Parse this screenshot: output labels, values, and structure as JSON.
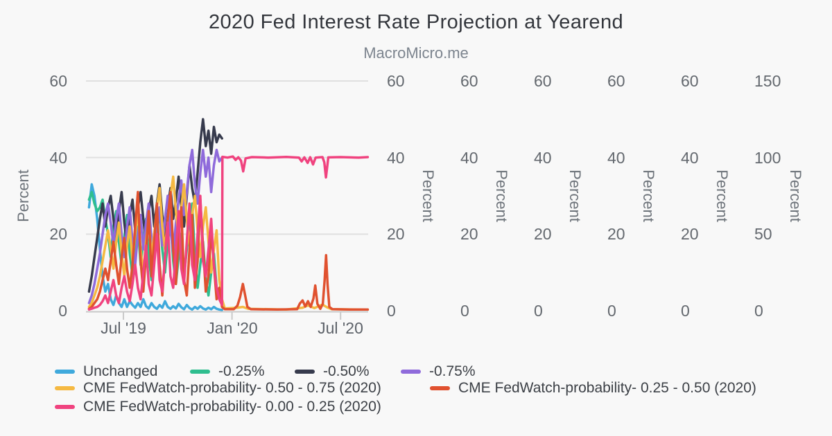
{
  "chart_data": {
    "type": "line",
    "title": "2020 Fed Interest Rate Projection at Yearend",
    "subtitle": "MacroMicro.me",
    "grid": "horizontal-only",
    "legend_position": "bottom-left",
    "x_axis": {
      "tick_labels": [
        "Jul '19",
        "Jan '20",
        "Jul '20"
      ],
      "tick_months": [
        0,
        6,
        12
      ],
      "range_months": [
        -1.9,
        13.5
      ],
      "unit": "months from 2019-07-01"
    },
    "x_grid": {
      "start": -1.9,
      "step": 0.15
    },
    "y_axes": [
      {
        "side": "left",
        "title": "Percent",
        "max": 60,
        "ticks": [
          "60",
          "40",
          "20",
          "0"
        ]
      },
      {
        "side": "right",
        "title": "Percent",
        "max": 60,
        "ticks": [
          "60",
          "40",
          "20",
          "0"
        ]
      },
      {
        "side": "right",
        "title": "Percent",
        "max": 60,
        "ticks": [
          "60",
          "40",
          "20",
          "0"
        ]
      },
      {
        "side": "right",
        "title": "Percent",
        "max": 60,
        "ticks": [
          "60",
          "40",
          "20",
          "0"
        ]
      },
      {
        "side": "right",
        "title": "Percent",
        "max": 60,
        "ticks": [
          "60",
          "40",
          "20",
          "0"
        ]
      },
      {
        "side": "right",
        "title": "Percent",
        "max": 60,
        "ticks": [
          "60",
          "40",
          "20",
          "0"
        ]
      },
      {
        "side": "right",
        "title": "Percent",
        "max": 150,
        "ticks": [
          "150",
          "100",
          "50",
          "0"
        ]
      }
    ],
    "series": [
      {
        "name": "Unchanged",
        "color": "#3fa9dc",
        "axis": 0,
        "values": [
          27,
          33,
          30,
          24,
          16,
          9,
          5,
          7,
          3,
          1.5,
          4,
          2,
          1,
          3,
          1,
          2.5,
          1.5,
          0.8,
          2,
          1,
          3,
          1.2,
          0.6,
          2,
          1,
          0.5,
          1.5,
          0.8,
          2.5,
          1,
          0.5,
          1.2,
          0.6,
          1.8,
          0.9,
          0.4,
          1.5,
          0.7,
          0.3,
          1,
          0.5,
          1.2,
          0.6,
          0.3,
          0.8,
          0.4,
          1,
          0.5,
          0.3,
          0.2
        ]
      },
      {
        "name": "-0.25%",
        "color": "#2fbe8f",
        "axis": 1,
        "values": [
          29,
          31,
          28,
          26,
          27,
          29,
          24,
          20,
          14,
          22,
          26,
          18,
          12,
          19,
          25,
          15,
          9,
          16,
          22,
          12,
          18,
          24,
          14,
          8,
          15,
          21,
          26,
          16,
          10,
          18,
          23,
          13,
          7,
          14,
          20,
          9,
          16,
          24,
          28,
          14,
          6,
          12,
          18,
          8,
          4,
          10,
          15,
          6,
          3,
          2
        ]
      },
      {
        "name": "-0.50%",
        "color": "#373b4d",
        "axis": 2,
        "values": [
          5,
          9,
          14,
          19,
          24,
          28,
          22,
          27,
          30,
          24,
          18,
          26,
          31,
          23,
          17,
          25,
          29,
          21,
          27,
          31,
          24,
          18,
          26,
          30,
          22,
          28,
          33,
          25,
          19,
          27,
          32,
          24,
          29,
          35,
          27,
          22,
          30,
          38,
          32,
          28,
          36,
          44,
          50,
          43,
          47,
          41,
          48,
          44,
          46,
          45
        ]
      },
      {
        "name": "-0.75%",
        "color": "#8f6bdb",
        "axis": 3,
        "values": [
          2,
          4,
          7,
          11,
          15,
          20,
          25,
          28,
          23,
          17,
          24,
          28,
          20,
          14,
          22,
          27,
          18,
          12,
          20,
          25,
          16,
          23,
          28,
          19,
          13,
          21,
          27,
          17,
          24,
          30,
          21,
          15,
          23,
          29,
          34,
          25,
          31,
          38,
          42,
          33,
          28,
          36,
          42,
          35,
          40,
          31,
          38,
          42,
          39,
          40
        ]
      },
      {
        "name": "CME FedWatch-probability- 0.50 - 0.75 (2020)",
        "color": "#f5b942",
        "axis": 4,
        "values": [
          1,
          2,
          4,
          6,
          9,
          13,
          17,
          21,
          16,
          11,
          18,
          23,
          15,
          9,
          17,
          22,
          13,
          20,
          26,
          16,
          10,
          18,
          24,
          14,
          20,
          27,
          32,
          22,
          16,
          24,
          30,
          35,
          26,
          19,
          27,
          33,
          24,
          17,
          25,
          30,
          21,
          14,
          22,
          27,
          18,
          10,
          16,
          21,
          8,
          3
        ],
        "extra_points": [
          [
            5.6,
            0.6
          ],
          [
            6.3,
            0.8
          ],
          [
            6.6,
            1
          ],
          [
            6.9,
            0.5
          ],
          [
            8,
            0.4
          ],
          [
            9,
            0.3
          ],
          [
            9.9,
            0.8
          ],
          [
            10.2,
            1.4
          ],
          [
            10.55,
            0.7
          ],
          [
            11.0,
            1.6
          ],
          [
            11.25,
            0.9
          ],
          [
            11.5,
            0.4
          ],
          [
            13.5,
            0.3
          ]
        ]
      },
      {
        "name": "CME FedWatch-probability- 0.25 - 0.50 (2020)",
        "color": "#e0512f",
        "axis": 5,
        "values": [
          0.5,
          1,
          2,
          3,
          5,
          8,
          11,
          8,
          13,
          18,
          12,
          7,
          14,
          19,
          11,
          6,
          12,
          22,
          31,
          13,
          5,
          15,
          26,
          9,
          18,
          28,
          12,
          4,
          14,
          24,
          31,
          16,
          7,
          19,
          27,
          8,
          4,
          16,
          25,
          6,
          13,
          29,
          17,
          5,
          9,
          21,
          12,
          3,
          6,
          1
        ],
        "extra_points": [
          [
            5.6,
            0.4
          ],
          [
            6.1,
            0.4
          ],
          [
            6.3,
            1.3
          ],
          [
            6.45,
            3.6
          ],
          [
            6.6,
            7
          ],
          [
            6.72,
            4.2
          ],
          [
            6.85,
            1
          ],
          [
            7.05,
            0.4
          ],
          [
            8.5,
            0.3
          ],
          [
            9.6,
            0.4
          ],
          [
            9.75,
            1.9
          ],
          [
            9.9,
            2.7
          ],
          [
            10.05,
            1.1
          ],
          [
            10.2,
            2.5
          ],
          [
            10.35,
            1
          ],
          [
            10.5,
            3.2
          ],
          [
            10.6,
            6.6
          ],
          [
            10.72,
            1.8
          ],
          [
            10.88,
            0.5
          ],
          [
            11.02,
            1.8
          ],
          [
            11.12,
            8
          ],
          [
            11.2,
            14.5
          ],
          [
            11.28,
            7
          ],
          [
            11.38,
            1
          ],
          [
            11.55,
            0.4
          ],
          [
            12.5,
            0.3
          ],
          [
            13.5,
            0.3
          ]
        ]
      },
      {
        "name": "CME FedWatch-probability- 0.00 - 0.25 (2020)",
        "color": "#f0437f",
        "axis": 6,
        "values": [
          0.8,
          1.3,
          2,
          2.5,
          3.8,
          6.3,
          10,
          5,
          12.5,
          20,
          10,
          5,
          15,
          22.5,
          12.5,
          6.3,
          17.5,
          30,
          15,
          7.5,
          25,
          42.5,
          17.5,
          10,
          30,
          50,
          20,
          12.5,
          35,
          57.5,
          22.5,
          15,
          40,
          65,
          27.5,
          17.5,
          45,
          70,
          30,
          20,
          50,
          75,
          32.5,
          22.5,
          40,
          60,
          30,
          15,
          7.5,
          3.8
        ],
        "extra_points": [
          [
            5.47,
            100.5
          ],
          [
            5.75,
            100
          ],
          [
            6.05,
            100.7
          ],
          [
            6.2,
            98.5
          ],
          [
            6.35,
            100.2
          ],
          [
            6.5,
            98
          ],
          [
            6.62,
            91
          ],
          [
            6.75,
            99.5
          ],
          [
            7.1,
            100.3
          ],
          [
            8,
            100
          ],
          [
            9,
            100.4
          ],
          [
            9.7,
            100
          ],
          [
            9.85,
            97.5
          ],
          [
            10.0,
            100.1
          ],
          [
            10.18,
            96.5
          ],
          [
            10.32,
            100.2
          ],
          [
            10.48,
            95.5
          ],
          [
            10.62,
            100
          ],
          [
            11.0,
            100.3
          ],
          [
            11.1,
            97
          ],
          [
            11.19,
            87
          ],
          [
            11.32,
            100.1
          ],
          [
            12,
            100.3
          ],
          [
            13,
            100
          ],
          [
            13.5,
            100.3
          ]
        ]
      }
    ]
  }
}
